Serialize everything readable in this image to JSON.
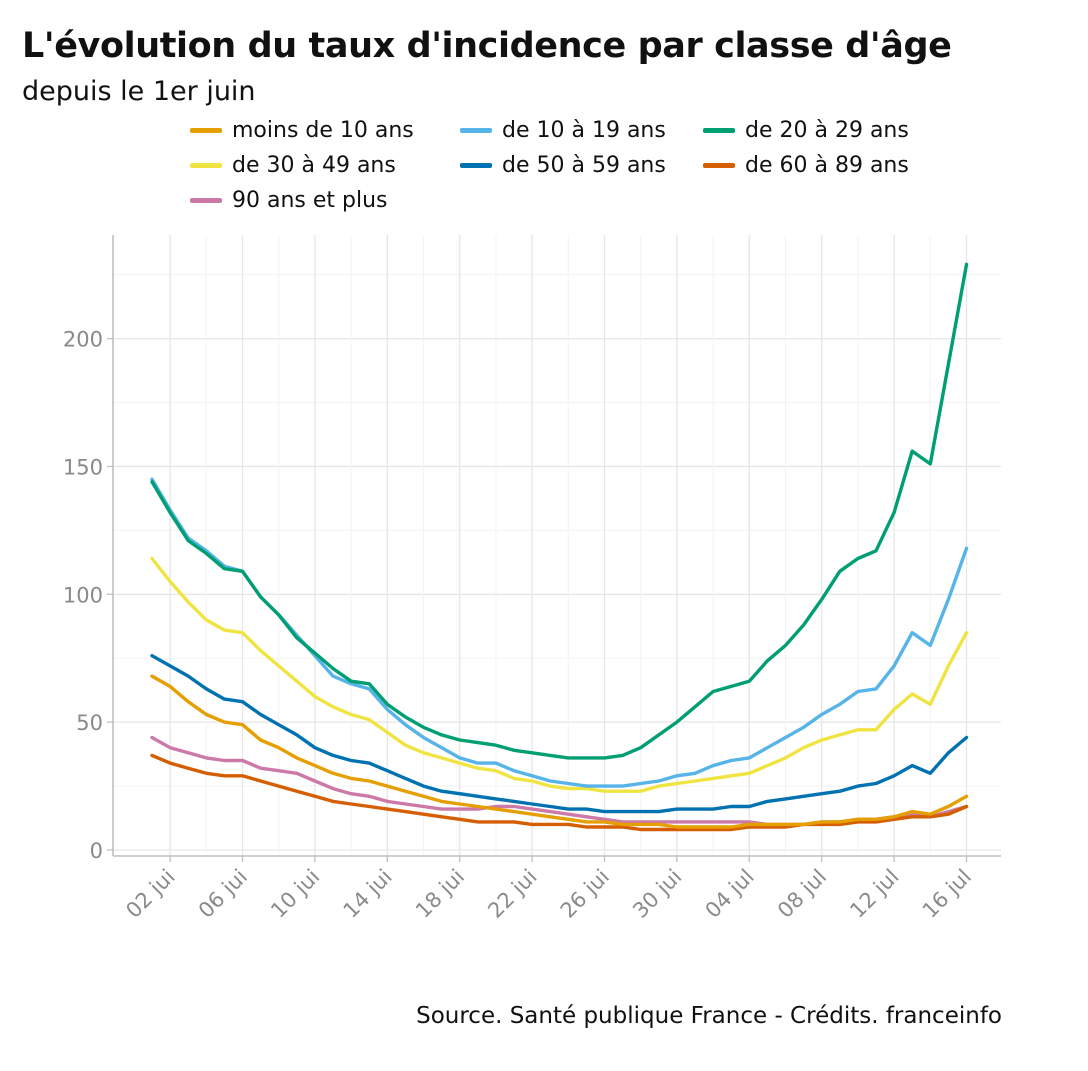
{
  "header": {
    "title": "L'évolution du taux d'incidence par classe d'âge",
    "subtitle": "depuis le 1er juin"
  },
  "footer": {
    "source": "Source. Santé publique France - Crédits. franceinfo"
  },
  "chart_data": {
    "type": "line",
    "title": "L'évolution du taux d'incidence par classe d'âge",
    "subtitle": "depuis le 1er juin",
    "xlabel": "",
    "ylabel": "",
    "x_start_day_of_year": 153,
    "x": [
      "01 jui",
      "02 jui",
      "03 jui",
      "04 jui",
      "05 jui",
      "06 jui",
      "07 jui",
      "08 jui",
      "09 jui",
      "10 jui",
      "11 jui",
      "12 jui",
      "13 jui",
      "14 jui",
      "15 jui",
      "16 jui",
      "17 jui",
      "18 jui",
      "19 jui",
      "20 jui",
      "21 jui",
      "22 jui",
      "23 jui",
      "24 jui",
      "25 jui",
      "26 jui",
      "27 jui",
      "28 jui",
      "29 jui",
      "30 jui",
      "01 jul",
      "02 jul",
      "03 jul",
      "04 jul",
      "05 jul",
      "06 jul",
      "07 jul",
      "08 jul",
      "09 jul",
      "10 jul",
      "11 jul",
      "12 jul",
      "13 jul",
      "14 jul",
      "15 jul",
      "16 jul"
    ],
    "x_ticks": [
      "02 jui",
      "06 jui",
      "10 jui",
      "14 jui",
      "18 jui",
      "22 jui",
      "26 jui",
      "30 jui",
      "04 jul",
      "08 jul",
      "12 jul",
      "16 jul"
    ],
    "x_tick_index": [
      1,
      5,
      9,
      13,
      17,
      21,
      25,
      29,
      33,
      37,
      41,
      45
    ],
    "ylim": [
      0,
      230
    ],
    "y_ticks": [
      0,
      50,
      100,
      150,
      200
    ],
    "grid": true,
    "legend_position": "top",
    "series": [
      {
        "name": "moins de 10 ans",
        "color": "#e69f00",
        "values": [
          68,
          64,
          58,
          53,
          50,
          49,
          43,
          40,
          36,
          33,
          30,
          28,
          27,
          25,
          23,
          21,
          19,
          18,
          17,
          16,
          15,
          14,
          13,
          12,
          11,
          11,
          10,
          10,
          10,
          9,
          9,
          9,
          9,
          10,
          10,
          10,
          10,
          11,
          11,
          12,
          12,
          13,
          15,
          14,
          17,
          21
        ]
      },
      {
        "name": "de 10 à 19 ans",
        "color": "#56b4e9",
        "values": [
          145,
          133,
          122,
          117,
          111,
          109,
          99,
          92,
          84,
          76,
          68,
          65,
          63,
          55,
          49,
          44,
          40,
          36,
          34,
          34,
          31,
          29,
          27,
          26,
          25,
          25,
          25,
          26,
          27,
          29,
          30,
          33,
          35,
          36,
          40,
          44,
          48,
          53,
          57,
          62,
          63,
          72,
          85,
          80,
          98,
          118
        ]
      },
      {
        "name": "de 20 à 29 ans",
        "color": "#009e73",
        "values": [
          144,
          132,
          121,
          116,
          110,
          109,
          99,
          92,
          83,
          77,
          71,
          66,
          65,
          57,
          52,
          48,
          45,
          43,
          42,
          41,
          39,
          38,
          37,
          36,
          36,
          36,
          37,
          40,
          45,
          50,
          56,
          62,
          64,
          66,
          74,
          80,
          88,
          98,
          109,
          114,
          117,
          132,
          156,
          151,
          190,
          229
        ]
      },
      {
        "name": "de 30 à 49 ans",
        "color": "#f0e442",
        "values": [
          114,
          105,
          97,
          90,
          86,
          85,
          78,
          72,
          66,
          60,
          56,
          53,
          51,
          46,
          41,
          38,
          36,
          34,
          32,
          31,
          28,
          27,
          25,
          24,
          24,
          23,
          23,
          23,
          25,
          26,
          27,
          28,
          29,
          30,
          33,
          36,
          40,
          43,
          45,
          47,
          47,
          55,
          61,
          57,
          72,
          85
        ]
      },
      {
        "name": "de 50 à 59 ans",
        "color": "#0072b2",
        "values": [
          76,
          72,
          68,
          63,
          59,
          58,
          53,
          49,
          45,
          40,
          37,
          35,
          34,
          31,
          28,
          25,
          23,
          22,
          21,
          20,
          19,
          18,
          17,
          16,
          16,
          15,
          15,
          15,
          15,
          16,
          16,
          16,
          17,
          17,
          19,
          20,
          21,
          22,
          23,
          25,
          26,
          29,
          33,
          30,
          38,
          44
        ]
      },
      {
        "name": "de 60 à 89 ans",
        "color": "#d55e00",
        "values": [
          37,
          34,
          32,
          30,
          29,
          29,
          27,
          25,
          23,
          21,
          19,
          18,
          17,
          16,
          15,
          14,
          13,
          12,
          11,
          11,
          11,
          10,
          10,
          10,
          9,
          9,
          9,
          8,
          8,
          8,
          8,
          8,
          8,
          9,
          9,
          9,
          10,
          10,
          10,
          11,
          11,
          12,
          13,
          13,
          14,
          17
        ]
      },
      {
        "name": "90 ans et plus",
        "color": "#cc79a7",
        "values": [
          44,
          40,
          38,
          36,
          35,
          35,
          32,
          31,
          30,
          27,
          24,
          22,
          21,
          19,
          18,
          17,
          16,
          16,
          16,
          17,
          17,
          16,
          15,
          14,
          13,
          12,
          11,
          11,
          11,
          11,
          11,
          11,
          11,
          11,
          10,
          10,
          10,
          11,
          11,
          12,
          12,
          13,
          14,
          13,
          15,
          17
        ]
      }
    ]
  }
}
